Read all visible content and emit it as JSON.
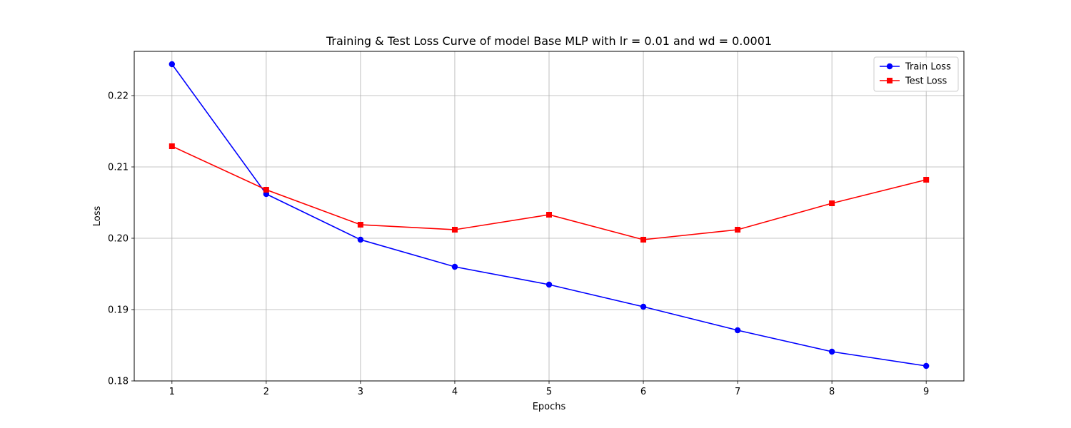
{
  "chart_data": {
    "type": "line",
    "title": "Training & Test Loss Curve of model Base MLP with lr = 0.01 and wd = 0.0001",
    "xlabel": "Epochs",
    "ylabel": "Loss",
    "x": [
      1,
      2,
      3,
      4,
      5,
      6,
      7,
      8,
      9
    ],
    "xlim": [
      0.6,
      9.4
    ],
    "ylim": [
      0.18,
      0.2262
    ],
    "xticks": [
      "1",
      "2",
      "3",
      "4",
      "5",
      "6",
      "7",
      "8",
      "9"
    ],
    "yticks": [
      "0.18",
      "0.19",
      "0.20",
      "0.21",
      "0.22"
    ],
    "ytick_values": [
      0.18,
      0.19,
      0.2,
      0.21,
      0.22
    ],
    "grid": true,
    "legend_position": "top-right",
    "series": [
      {
        "name": "Train Loss",
        "color": "#0000ff",
        "marker": "circle",
        "values": [
          0.2244,
          0.2062,
          0.1998,
          0.196,
          0.1935,
          0.1904,
          0.1871,
          0.1841,
          0.1821
        ]
      },
      {
        "name": "Test Loss",
        "color": "#ff0000",
        "marker": "square",
        "values": [
          0.2129,
          0.2068,
          0.2019,
          0.2012,
          0.2033,
          0.1998,
          0.2012,
          0.2049,
          0.2082
        ]
      }
    ]
  }
}
